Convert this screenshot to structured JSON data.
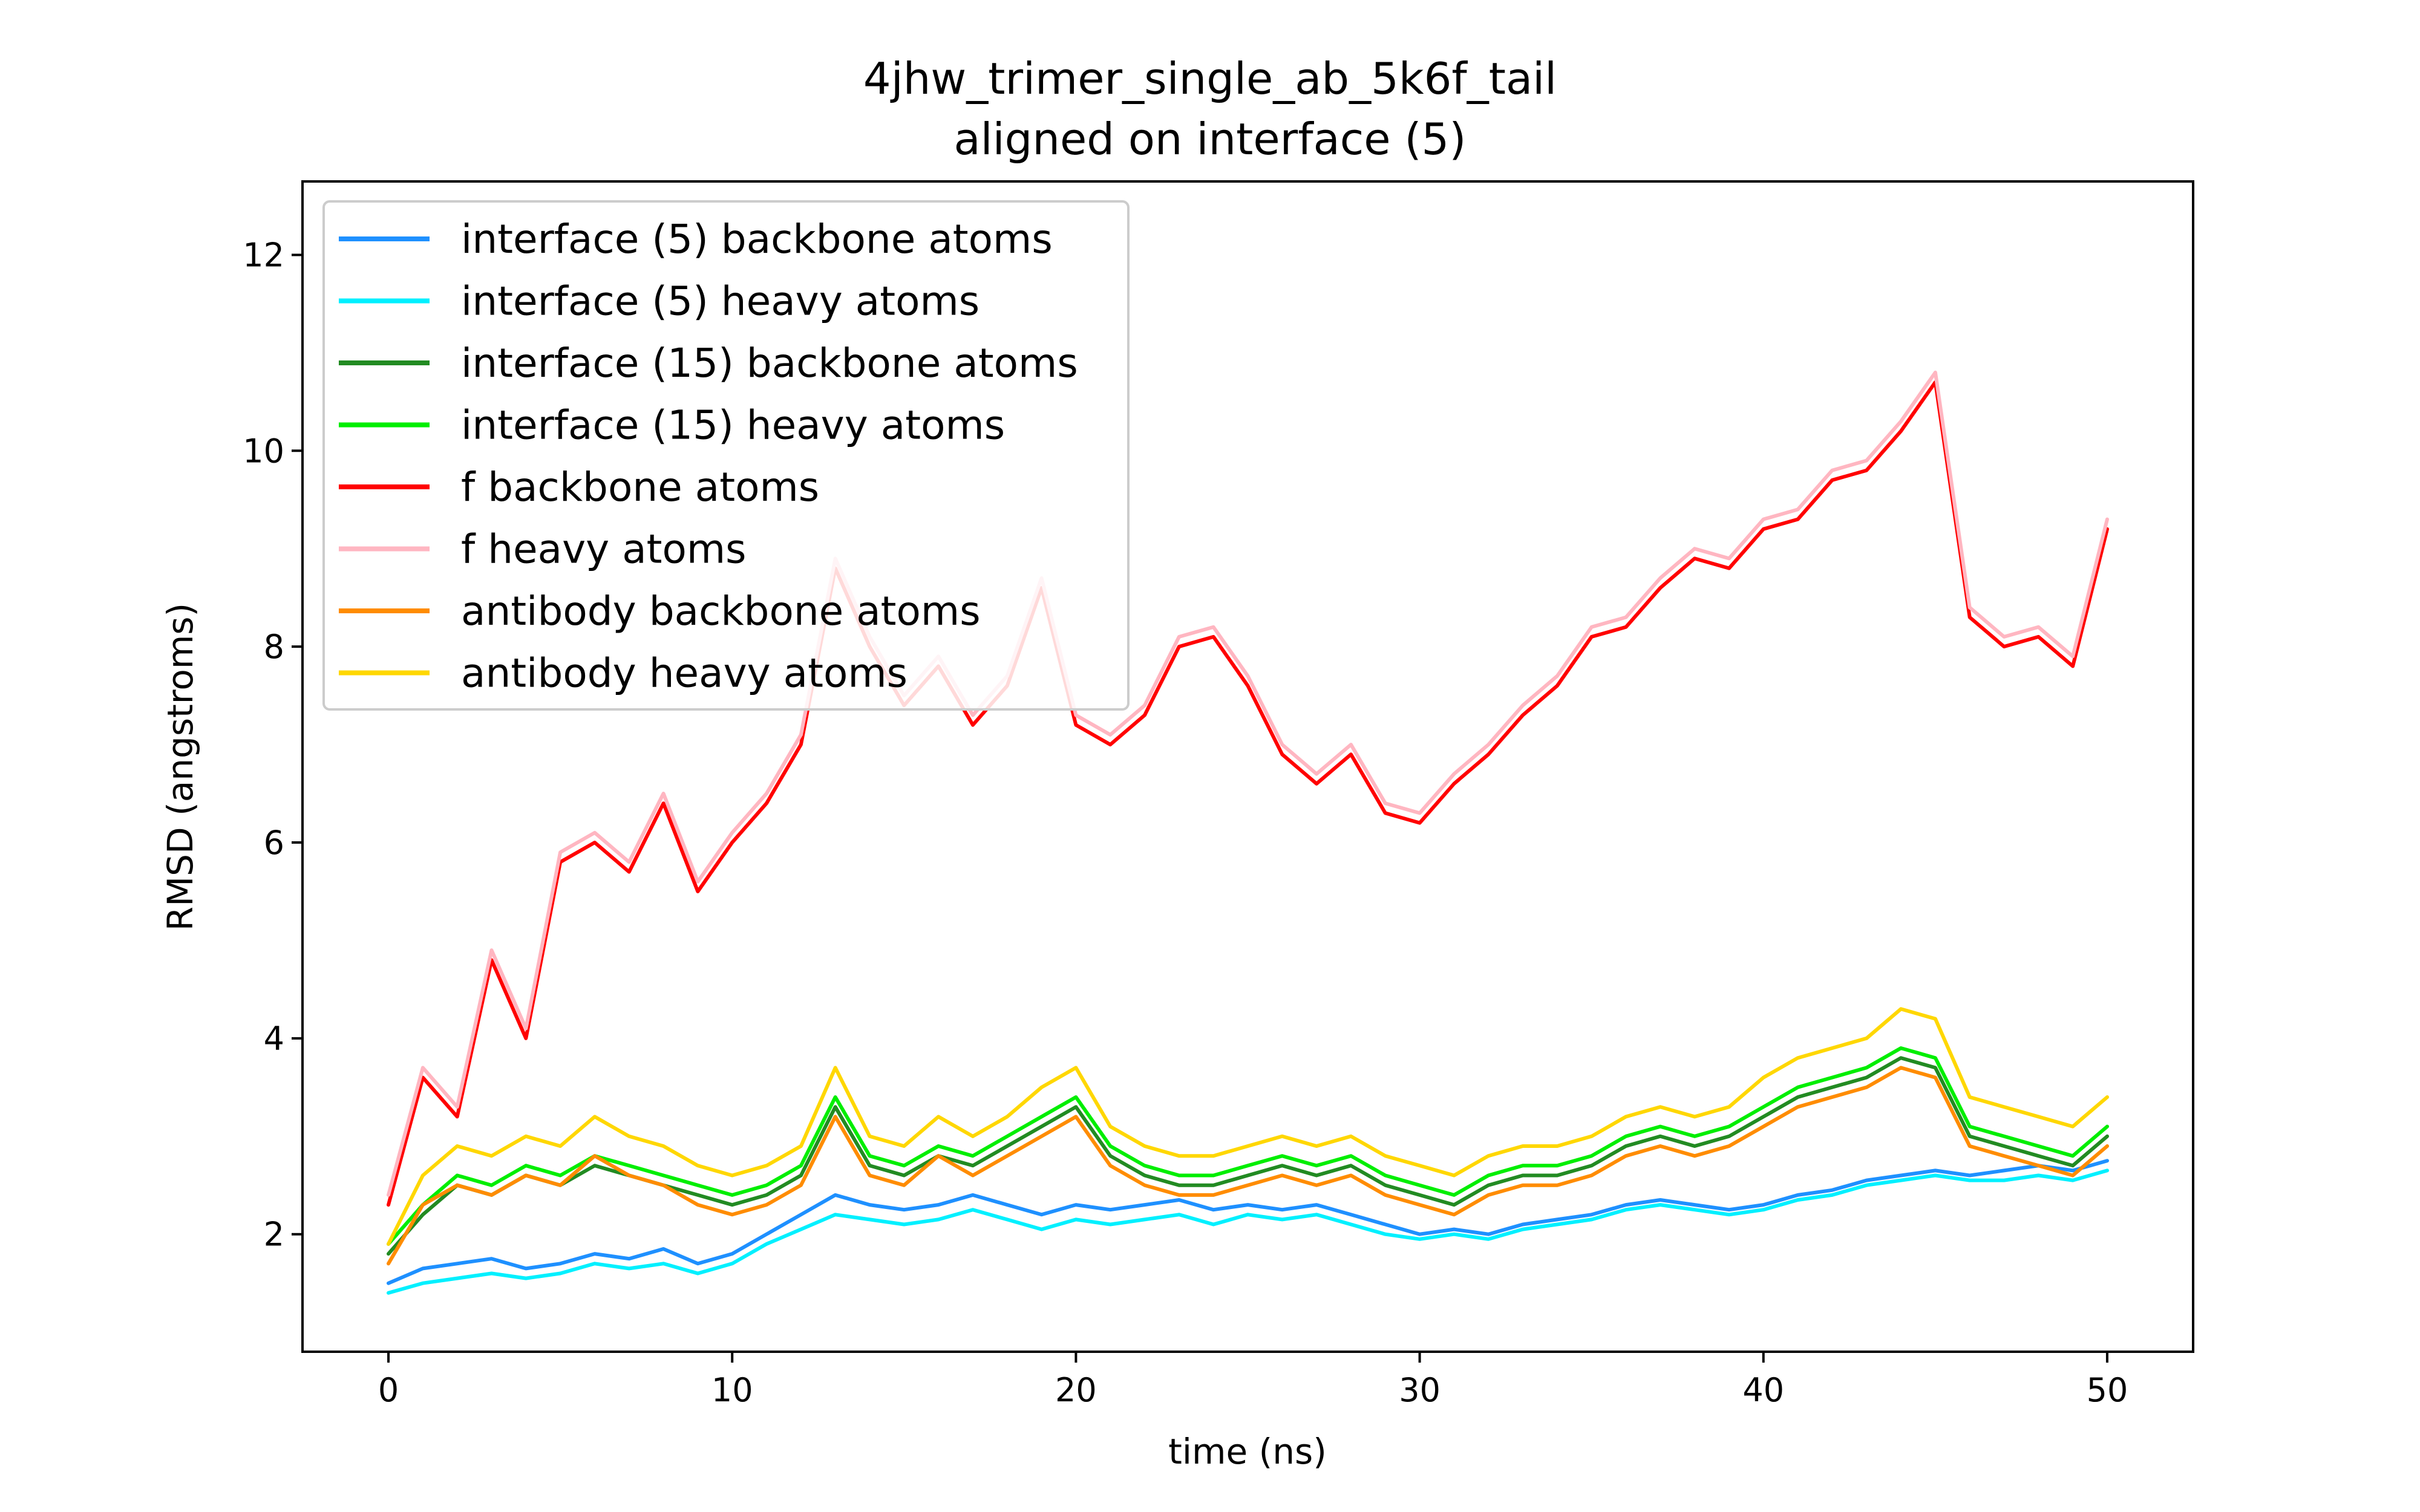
{
  "chart_data": {
    "type": "line",
    "title": "4jhw_trimer_single_ab_5k6f_tail",
    "subtitle": "aligned on interface (5)",
    "xlabel": "time (ns)",
    "ylabel": "RMSD (angstroms)",
    "xlim": [
      -2.5,
      52.5
    ],
    "ylim": [
      0.8,
      12.75
    ],
    "xticks": [
      0,
      10,
      20,
      30,
      40,
      50
    ],
    "yticks": [
      2,
      4,
      6,
      8,
      10,
      12
    ],
    "grid": false,
    "legend_position": "upper-left",
    "series": [
      {
        "name": "interface (5) backbone atoms",
        "color": "#1e90ff",
        "x": [
          0,
          1,
          2,
          3,
          4,
          5,
          6,
          7,
          8,
          9,
          10,
          11,
          12,
          13,
          14,
          15,
          16,
          17,
          18,
          19,
          20,
          21,
          22,
          23,
          24,
          25,
          26,
          27,
          28,
          29,
          30,
          31,
          32,
          33,
          34,
          35,
          36,
          37,
          38,
          39,
          40,
          41,
          42,
          43,
          44,
          45,
          46,
          47,
          48,
          49,
          50
        ],
        "y": [
          1.5,
          1.65,
          1.7,
          1.75,
          1.65,
          1.7,
          1.8,
          1.75,
          1.85,
          1.7,
          1.8,
          2.0,
          2.2,
          2.4,
          2.3,
          2.25,
          2.3,
          2.4,
          2.3,
          2.2,
          2.3,
          2.25,
          2.3,
          2.35,
          2.25,
          2.3,
          2.25,
          2.3,
          2.2,
          2.1,
          2.0,
          2.05,
          2.0,
          2.1,
          2.15,
          2.2,
          2.3,
          2.35,
          2.3,
          2.25,
          2.3,
          2.4,
          2.45,
          2.55,
          2.6,
          2.65,
          2.6,
          2.65,
          2.7,
          2.65,
          2.75
        ]
      },
      {
        "name": "interface (5) heavy atoms",
        "color": "#00f0ff",
        "x": [
          0,
          1,
          2,
          3,
          4,
          5,
          6,
          7,
          8,
          9,
          10,
          11,
          12,
          13,
          14,
          15,
          16,
          17,
          18,
          19,
          20,
          21,
          22,
          23,
          24,
          25,
          26,
          27,
          28,
          29,
          30,
          31,
          32,
          33,
          34,
          35,
          36,
          37,
          38,
          39,
          40,
          41,
          42,
          43,
          44,
          45,
          46,
          47,
          48,
          49,
          50
        ],
        "y": [
          1.4,
          1.5,
          1.55,
          1.6,
          1.55,
          1.6,
          1.7,
          1.65,
          1.7,
          1.6,
          1.7,
          1.9,
          2.05,
          2.2,
          2.15,
          2.1,
          2.15,
          2.25,
          2.15,
          2.05,
          2.15,
          2.1,
          2.15,
          2.2,
          2.1,
          2.2,
          2.15,
          2.2,
          2.1,
          2.0,
          1.95,
          2.0,
          1.95,
          2.05,
          2.1,
          2.15,
          2.25,
          2.3,
          2.25,
          2.2,
          2.25,
          2.35,
          2.4,
          2.5,
          2.55,
          2.6,
          2.55,
          2.55,
          2.6,
          2.55,
          2.65
        ]
      },
      {
        "name": "interface (15) backbone atoms",
        "color": "#228b22",
        "x": [
          0,
          1,
          2,
          3,
          4,
          5,
          6,
          7,
          8,
          9,
          10,
          11,
          12,
          13,
          14,
          15,
          16,
          17,
          18,
          19,
          20,
          21,
          22,
          23,
          24,
          25,
          26,
          27,
          28,
          29,
          30,
          31,
          32,
          33,
          34,
          35,
          36,
          37,
          38,
          39,
          40,
          41,
          42,
          43,
          44,
          45,
          46,
          47,
          48,
          49,
          50
        ],
        "y": [
          1.8,
          2.2,
          2.5,
          2.4,
          2.6,
          2.5,
          2.7,
          2.6,
          2.5,
          2.4,
          2.3,
          2.4,
          2.6,
          3.3,
          2.7,
          2.6,
          2.8,
          2.7,
          2.9,
          3.1,
          3.3,
          2.8,
          2.6,
          2.5,
          2.5,
          2.6,
          2.7,
          2.6,
          2.7,
          2.5,
          2.4,
          2.3,
          2.5,
          2.6,
          2.6,
          2.7,
          2.9,
          3.0,
          2.9,
          3.0,
          3.2,
          3.4,
          3.5,
          3.6,
          3.8,
          3.7,
          3.0,
          2.9,
          2.8,
          2.7,
          3.0
        ]
      },
      {
        "name": "interface (15) heavy atoms",
        "color": "#00ee00",
        "x": [
          0,
          1,
          2,
          3,
          4,
          5,
          6,
          7,
          8,
          9,
          10,
          11,
          12,
          13,
          14,
          15,
          16,
          17,
          18,
          19,
          20,
          21,
          22,
          23,
          24,
          25,
          26,
          27,
          28,
          29,
          30,
          31,
          32,
          33,
          34,
          35,
          36,
          37,
          38,
          39,
          40,
          41,
          42,
          43,
          44,
          45,
          46,
          47,
          48,
          49,
          50
        ],
        "y": [
          1.9,
          2.3,
          2.6,
          2.5,
          2.7,
          2.6,
          2.8,
          2.7,
          2.6,
          2.5,
          2.4,
          2.5,
          2.7,
          3.4,
          2.8,
          2.7,
          2.9,
          2.8,
          3.0,
          3.2,
          3.4,
          2.9,
          2.7,
          2.6,
          2.6,
          2.7,
          2.8,
          2.7,
          2.8,
          2.6,
          2.5,
          2.4,
          2.6,
          2.7,
          2.7,
          2.8,
          3.0,
          3.1,
          3.0,
          3.1,
          3.3,
          3.5,
          3.6,
          3.7,
          3.9,
          3.8,
          3.1,
          3.0,
          2.9,
          2.8,
          3.1
        ]
      },
      {
        "name": "f backbone atoms",
        "color": "#ff0000",
        "x": [
          0,
          1,
          2,
          3,
          4,
          5,
          6,
          7,
          8,
          9,
          10,
          11,
          12,
          13,
          14,
          15,
          16,
          17,
          18,
          19,
          20,
          21,
          22,
          23,
          24,
          25,
          26,
          27,
          28,
          29,
          30,
          31,
          32,
          33,
          34,
          35,
          36,
          37,
          38,
          39,
          40,
          41,
          42,
          43,
          44,
          45,
          46,
          47,
          48,
          49,
          50
        ],
        "y": [
          2.3,
          3.6,
          3.2,
          4.8,
          4.0,
          5.8,
          6.0,
          5.7,
          6.4,
          5.5,
          6.0,
          6.4,
          7.0,
          8.8,
          8.0,
          7.4,
          7.8,
          7.2,
          7.6,
          8.6,
          7.2,
          7.0,
          7.3,
          8.0,
          8.1,
          7.6,
          6.9,
          6.6,
          6.9,
          6.3,
          6.2,
          6.6,
          6.9,
          7.3,
          7.6,
          8.1,
          8.2,
          8.6,
          8.9,
          8.8,
          9.2,
          9.3,
          9.7,
          9.8,
          10.2,
          10.7,
          8.3,
          8.0,
          8.1,
          7.8,
          9.2
        ]
      },
      {
        "name": "f heavy atoms",
        "color": "#ffb6c1",
        "x": [
          0,
          1,
          2,
          3,
          4,
          5,
          6,
          7,
          8,
          9,
          10,
          11,
          12,
          13,
          14,
          15,
          16,
          17,
          18,
          19,
          20,
          21,
          22,
          23,
          24,
          25,
          26,
          27,
          28,
          29,
          30,
          31,
          32,
          33,
          34,
          35,
          36,
          37,
          38,
          39,
          40,
          41,
          42,
          43,
          44,
          45,
          46,
          47,
          48,
          49,
          50
        ],
        "y": [
          2.4,
          3.7,
          3.3,
          4.9,
          4.1,
          5.9,
          6.1,
          5.8,
          6.5,
          5.6,
          6.1,
          6.5,
          7.1,
          8.9,
          8.1,
          7.5,
          7.9,
          7.3,
          7.7,
          8.7,
          7.3,
          7.1,
          7.4,
          8.1,
          8.2,
          7.7,
          7.0,
          6.7,
          7.0,
          6.4,
          6.3,
          6.7,
          7.0,
          7.4,
          7.7,
          8.2,
          8.3,
          8.7,
          9.0,
          8.9,
          9.3,
          9.4,
          9.8,
          9.9,
          10.3,
          10.8,
          8.4,
          8.1,
          8.2,
          7.9,
          9.3
        ]
      },
      {
        "name": "antibody backbone atoms",
        "color": "#ff8c00",
        "x": [
          0,
          1,
          2,
          3,
          4,
          5,
          6,
          7,
          8,
          9,
          10,
          11,
          12,
          13,
          14,
          15,
          16,
          17,
          18,
          19,
          20,
          21,
          22,
          23,
          24,
          25,
          26,
          27,
          28,
          29,
          30,
          31,
          32,
          33,
          34,
          35,
          36,
          37,
          38,
          39,
          40,
          41,
          42,
          43,
          44,
          45,
          46,
          47,
          48,
          49,
          50
        ],
        "y": [
          1.7,
          2.3,
          2.5,
          2.4,
          2.6,
          2.5,
          2.8,
          2.6,
          2.5,
          2.3,
          2.2,
          2.3,
          2.5,
          3.2,
          2.6,
          2.5,
          2.8,
          2.6,
          2.8,
          3.0,
          3.2,
          2.7,
          2.5,
          2.4,
          2.4,
          2.5,
          2.6,
          2.5,
          2.6,
          2.4,
          2.3,
          2.2,
          2.4,
          2.5,
          2.5,
          2.6,
          2.8,
          2.9,
          2.8,
          2.9,
          3.1,
          3.3,
          3.4,
          3.5,
          3.7,
          3.6,
          2.9,
          2.8,
          2.7,
          2.6,
          2.9
        ]
      },
      {
        "name": "antibody heavy atoms",
        "color": "#ffd700",
        "x": [
          0,
          1,
          2,
          3,
          4,
          5,
          6,
          7,
          8,
          9,
          10,
          11,
          12,
          13,
          14,
          15,
          16,
          17,
          18,
          19,
          20,
          21,
          22,
          23,
          24,
          25,
          26,
          27,
          28,
          29,
          30,
          31,
          32,
          33,
          34,
          35,
          36,
          37,
          38,
          39,
          40,
          41,
          42,
          43,
          44,
          45,
          46,
          47,
          48,
          49,
          50
        ],
        "y": [
          1.9,
          2.6,
          2.9,
          2.8,
          3.0,
          2.9,
          3.2,
          3.0,
          2.9,
          2.7,
          2.6,
          2.7,
          2.9,
          3.7,
          3.0,
          2.9,
          3.2,
          3.0,
          3.2,
          3.5,
          3.7,
          3.1,
          2.9,
          2.8,
          2.8,
          2.9,
          3.0,
          2.9,
          3.0,
          2.8,
          2.7,
          2.6,
          2.8,
          2.9,
          2.9,
          3.0,
          3.2,
          3.3,
          3.2,
          3.3,
          3.6,
          3.8,
          3.9,
          4.0,
          4.3,
          4.2,
          3.4,
          3.3,
          3.2,
          3.1,
          3.4
        ]
      }
    ]
  }
}
